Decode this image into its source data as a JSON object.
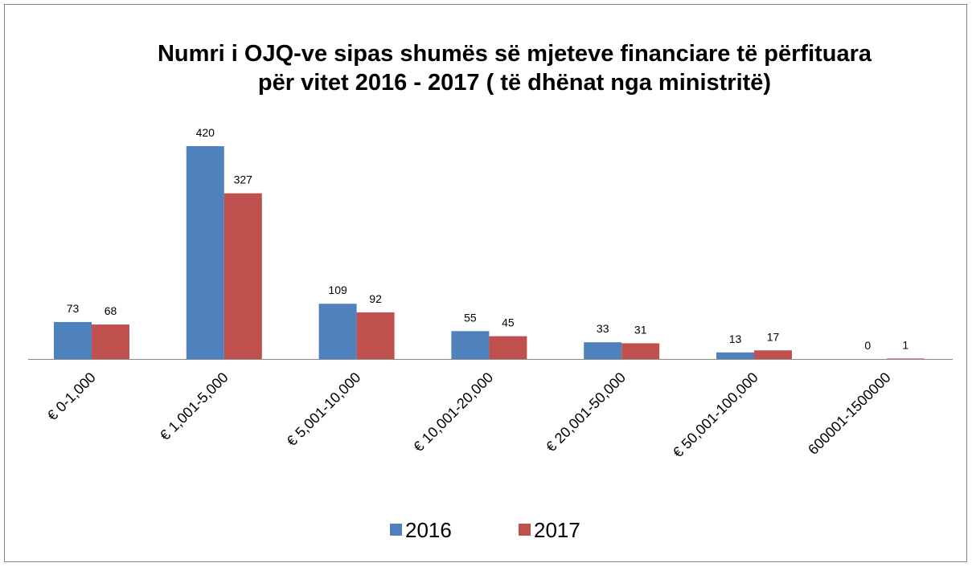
{
  "chart_data": {
    "type": "bar",
    "title": [
      "Numri i OJQ-ve sipas shumës së mjeteve financiare të përfituara",
      "për vitet 2016 - 2017 ( të dhënat nga ministritë)"
    ],
    "categories": [
      "€ 0-1,000",
      "€ 1,001-5,000",
      "€ 5,001-10,000",
      "€ 10,001-20,000",
      "€ 20,001-50,000",
      "€ 50,001-100,000",
      "600001-1500000"
    ],
    "series": [
      {
        "name": "2016",
        "color": "#4f81bd",
        "values": [
          73,
          420,
          109,
          55,
          33,
          13,
          0
        ]
      },
      {
        "name": "2017",
        "color": "#c0504d",
        "values": [
          68,
          327,
          92,
          45,
          31,
          17,
          1
        ]
      }
    ],
    "legend": "bottom"
  }
}
